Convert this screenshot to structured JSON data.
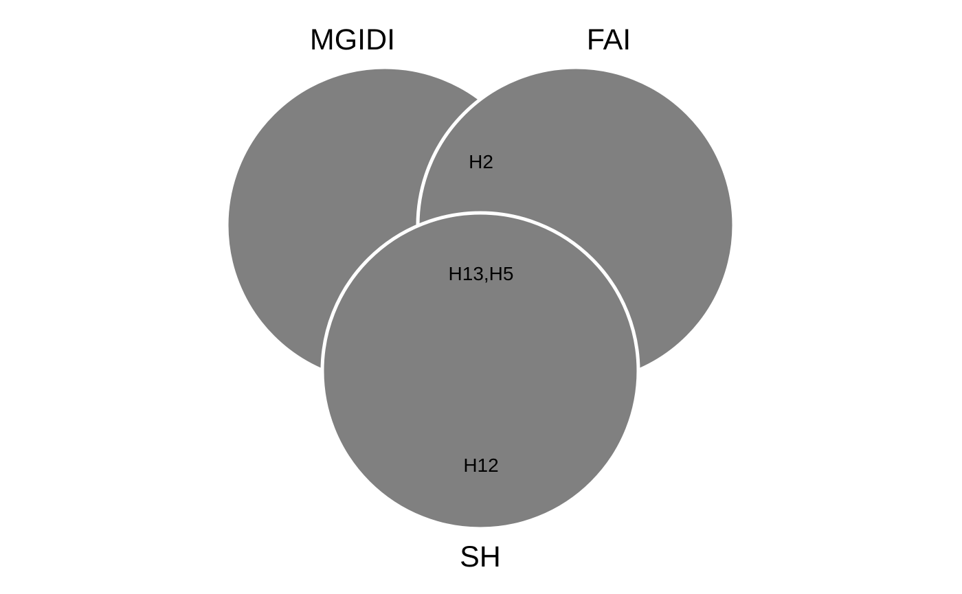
{
  "diagram": {
    "type": "venn",
    "fill_color": "#808080",
    "outline_color": "#ffffff",
    "sets": [
      {
        "id": "mgidi",
        "label": "MGIDI"
      },
      {
        "id": "fai",
        "label": "FAI"
      },
      {
        "id": "sh",
        "label": "SH"
      }
    ],
    "regions": [
      {
        "id": "fai-sh",
        "sets": [
          "fai",
          "sh"
        ],
        "label": "H2"
      },
      {
        "id": "mgidi-fai-sh",
        "sets": [
          "mgidi",
          "fai",
          "sh"
        ],
        "label": "H13,H5"
      },
      {
        "id": "sh-only",
        "sets": [
          "sh"
        ],
        "label": "H12"
      }
    ]
  }
}
